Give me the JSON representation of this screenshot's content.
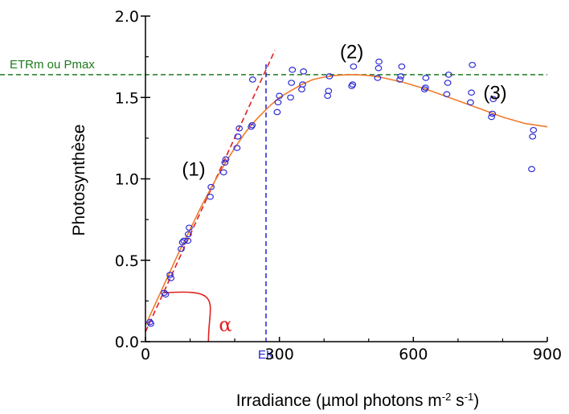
{
  "chart_data": {
    "type": "scatter",
    "title": "",
    "xlabel": "Irradiance (µmol photons m",
    "xlabel_sup1": "-2",
    "xlabel_mid": " s",
    "xlabel_sup2": "-1",
    "xlabel_end": ")",
    "ylabel": "Photosynthèse",
    "xlim": [
      0,
      900
    ],
    "ylim": [
      0.0,
      2.0
    ],
    "xticks": [
      0,
      300,
      600,
      900
    ],
    "xtick_labels": [
      "0",
      "300",
      "600",
      "900"
    ],
    "yticks": [
      0.0,
      0.5,
      1.0,
      1.5,
      2.0
    ],
    "ytick_labels": [
      "0.0",
      "0.5",
      "1.0",
      "1.5",
      "2.0"
    ],
    "grid": false,
    "colors": {
      "points": "#2b2bd6",
      "fit_curve": "#f07b2a",
      "initial_slope": "#e02020",
      "pmax_line": "#1e7a1e",
      "ek_line": "#2020d0",
      "alpha": "#e02020"
    },
    "points": [
      {
        "x": 10,
        "y": 0.12
      },
      {
        "x": 12,
        "y": 0.11
      },
      {
        "x": 42,
        "y": 0.3
      },
      {
        "x": 45,
        "y": 0.29
      },
      {
        "x": 55,
        "y": 0.41
      },
      {
        "x": 57,
        "y": 0.39
      },
      {
        "x": 80,
        "y": 0.57
      },
      {
        "x": 83,
        "y": 0.61
      },
      {
        "x": 86,
        "y": 0.62
      },
      {
        "x": 95,
        "y": 0.62
      },
      {
        "x": 96,
        "y": 0.66
      },
      {
        "x": 98,
        "y": 0.7
      },
      {
        "x": 145,
        "y": 0.89
      },
      {
        "x": 147,
        "y": 0.95
      },
      {
        "x": 175,
        "y": 1.04
      },
      {
        "x": 178,
        "y": 1.1
      },
      {
        "x": 180,
        "y": 1.12
      },
      {
        "x": 205,
        "y": 1.19
      },
      {
        "x": 207,
        "y": 1.26
      },
      {
        "x": 210,
        "y": 1.31
      },
      {
        "x": 237,
        "y": 1.32
      },
      {
        "x": 239,
        "y": 1.33
      },
      {
        "x": 240,
        "y": 1.61
      },
      {
        "x": 295,
        "y": 1.41
      },
      {
        "x": 297,
        "y": 1.47
      },
      {
        "x": 300,
        "y": 1.51
      },
      {
        "x": 325,
        "y": 1.5
      },
      {
        "x": 327,
        "y": 1.59
      },
      {
        "x": 329,
        "y": 1.67
      },
      {
        "x": 350,
        "y": 1.55
      },
      {
        "x": 352,
        "y": 1.58
      },
      {
        "x": 354,
        "y": 1.66
      },
      {
        "x": 408,
        "y": 1.51
      },
      {
        "x": 410,
        "y": 1.54
      },
      {
        "x": 412,
        "y": 1.63
      },
      {
        "x": 462,
        "y": 1.57
      },
      {
        "x": 464,
        "y": 1.58
      },
      {
        "x": 466,
        "y": 1.69
      },
      {
        "x": 520,
        "y": 1.62
      },
      {
        "x": 522,
        "y": 1.68
      },
      {
        "x": 523,
        "y": 1.72
      },
      {
        "x": 570,
        "y": 1.61
      },
      {
        "x": 572,
        "y": 1.63
      },
      {
        "x": 574,
        "y": 1.69
      },
      {
        "x": 625,
        "y": 1.55
      },
      {
        "x": 627,
        "y": 1.56
      },
      {
        "x": 628,
        "y": 1.62
      },
      {
        "x": 675,
        "y": 1.52
      },
      {
        "x": 677,
        "y": 1.59
      },
      {
        "x": 679,
        "y": 1.64
      },
      {
        "x": 728,
        "y": 1.47
      },
      {
        "x": 730,
        "y": 1.53
      },
      {
        "x": 732,
        "y": 1.7
      },
      {
        "x": 775,
        "y": 1.38
      },
      {
        "x": 777,
        "y": 1.4
      },
      {
        "x": 779,
        "y": 1.49
      },
      {
        "x": 865,
        "y": 1.06
      },
      {
        "x": 867,
        "y": 1.26
      },
      {
        "x": 869,
        "y": 1.3
      }
    ],
    "fit_curve": {
      "x": [
        0,
        25,
        50,
        75,
        100,
        125,
        150,
        175,
        200,
        225,
        250,
        275,
        300,
        325,
        350,
        375,
        400,
        425,
        450,
        475,
        500,
        525,
        550,
        575,
        600,
        625,
        650,
        675,
        700,
        725,
        750,
        775,
        800,
        825,
        850,
        875,
        900
      ],
      "y": [
        0.1,
        0.25,
        0.4,
        0.55,
        0.69,
        0.83,
        0.96,
        1.08,
        1.19,
        1.29,
        1.37,
        1.44,
        1.5,
        1.54,
        1.58,
        1.61,
        1.625,
        1.635,
        1.64,
        1.64,
        1.635,
        1.625,
        1.61,
        1.595,
        1.575,
        1.555,
        1.53,
        1.505,
        1.48,
        1.455,
        1.43,
        1.405,
        1.38,
        1.36,
        1.34,
        1.33,
        1.32
      ]
    },
    "initial_slope": {
      "x": [
        0,
        290
      ],
      "y": [
        0.06,
        1.79
      ]
    },
    "pmax": {
      "y": 1.64,
      "label": "ETRm ou Pmax"
    },
    "ek": {
      "x": 270,
      "label": "EK"
    },
    "phases": [
      {
        "label": "(1)",
        "x": 108,
        "y": 1.02
      },
      {
        "label": "(2)",
        "x": 462,
        "y": 1.74
      },
      {
        "label": "(3)",
        "x": 783,
        "y": 1.49
      }
    ],
    "alpha": {
      "label": "α"
    }
  }
}
